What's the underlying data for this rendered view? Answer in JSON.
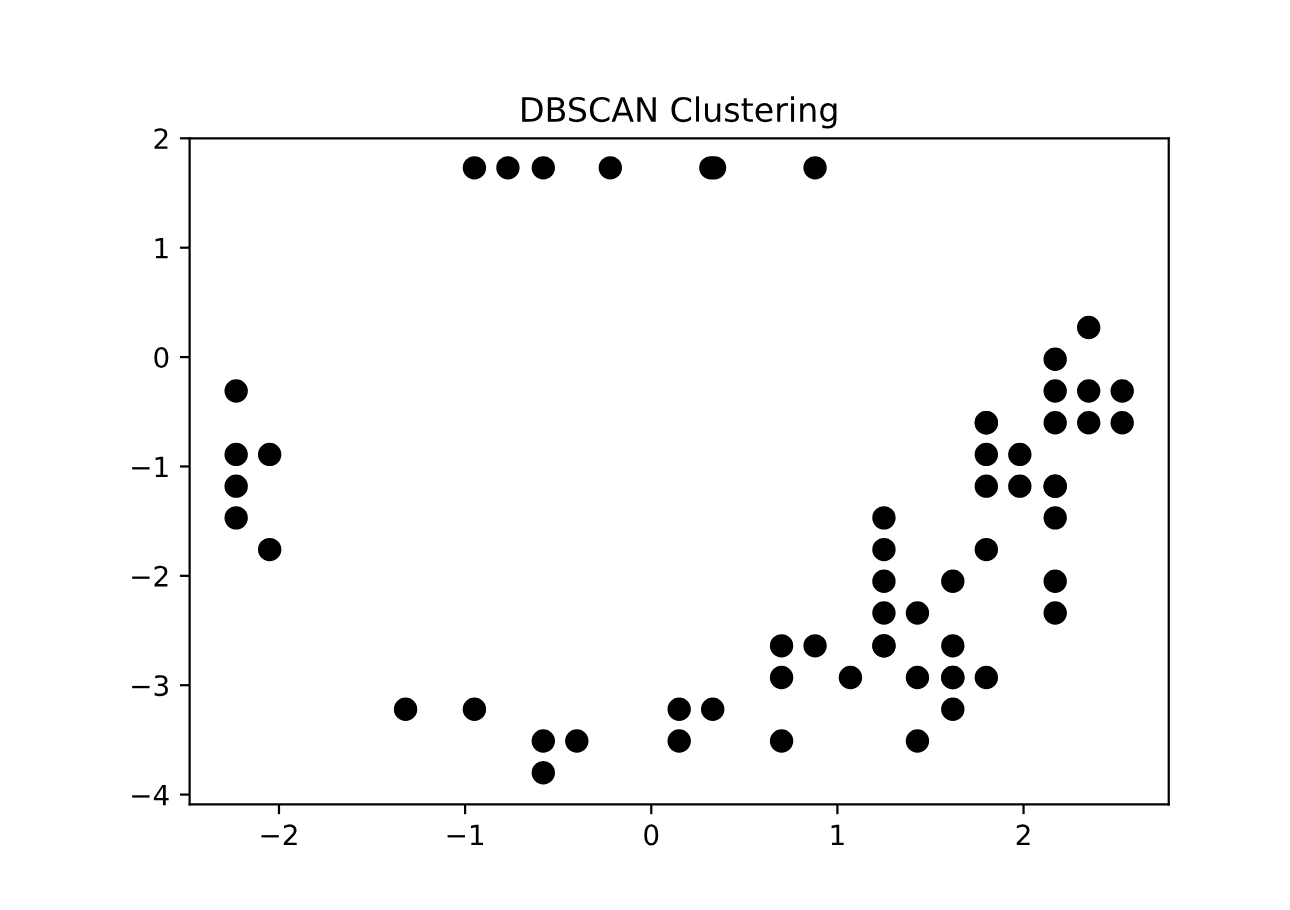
{
  "chart_data": {
    "type": "scatter",
    "title": "DBSCAN Clustering",
    "x": [
      -0.95,
      -0.77,
      -0.58,
      -0.22,
      0.32,
      0.34,
      0.88,
      -2.23,
      -2.23,
      -2.23,
      -2.23,
      -2.05,
      -2.05,
      -1.32,
      -0.95,
      -0.58,
      -0.4,
      -0.58,
      0.15,
      0.15,
      0.33,
      0.7,
      0.7,
      0.7,
      0.88,
      1.07,
      1.25,
      1.25,
      1.25,
      1.25,
      1.25,
      1.25,
      1.43,
      1.43,
      1.43,
      1.62,
      1.62,
      1.62,
      1.62,
      1.62,
      1.8,
      1.8,
      1.8,
      1.8,
      1.8,
      1.8,
      1.98,
      1.98,
      2.17,
      2.17,
      2.17,
      2.17,
      2.17,
      2.17,
      2.17,
      2.17,
      2.35,
      2.35,
      2.35,
      2.53,
      2.53
    ],
    "series": [
      {
        "color": "#000000",
        "values": [
          1.73,
          1.73,
          1.73,
          1.73,
          1.73,
          1.73,
          1.73,
          -0.31,
          -0.89,
          -1.18,
          -1.47,
          -0.89,
          -1.76,
          -3.22,
          -3.22,
          -3.51,
          -3.51,
          -3.8,
          -3.22,
          -3.51,
          -3.22,
          -2.64,
          -2.93,
          -3.51,
          -2.64,
          -2.93,
          -1.47,
          -1.76,
          -2.05,
          -2.34,
          -2.64,
          -2.64,
          -2.34,
          -2.93,
          -3.51,
          -2.05,
          -2.64,
          -2.93,
          -3.22,
          -2.93,
          -0.6,
          -0.89,
          -1.18,
          -1.76,
          -2.93,
          -0.6,
          -0.89,
          -1.18,
          -0.02,
          -0.31,
          -0.6,
          -1.18,
          -1.47,
          -2.05,
          -2.34,
          -1.18,
          0.27,
          -0.31,
          -0.6,
          -0.31,
          -0.6
        ]
      }
    ],
    "marker": "circle",
    "xlim": [
      -2.48,
      2.78
    ],
    "ylim": [
      -4.09,
      2.0
    ],
    "xticks": [
      {
        "value": -2,
        "label": "−2"
      },
      {
        "value": -1,
        "label": "−1"
      },
      0,
      1,
      2
    ],
    "yticks": [
      {
        "value": -4,
        "label": "−4"
      },
      {
        "value": -3,
        "label": "−3"
      },
      {
        "value": -2,
        "label": "−2"
      },
      {
        "value": -1,
        "label": "−1"
      },
      0,
      1,
      2
    ],
    "grid": false,
    "legend": false
  }
}
